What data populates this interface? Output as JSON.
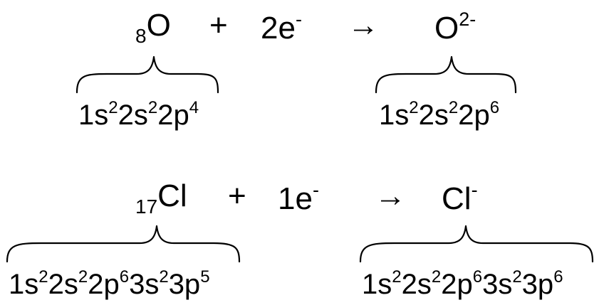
{
  "reactions": [
    {
      "reactant": {
        "subscript": "8",
        "symbol": "O"
      },
      "plus": "+",
      "electrons": {
        "count": "2e",
        "sign": "-"
      },
      "arrow": "→",
      "product": {
        "symbol": "O",
        "charge": "2-"
      },
      "reactant_config": [
        {
          "base": "1s",
          "exp": "2"
        },
        {
          "base": "2s",
          "exp": "2"
        },
        {
          "base": "2p",
          "exp": "4"
        }
      ],
      "product_config": [
        {
          "base": "1s",
          "exp": "2"
        },
        {
          "base": "2s",
          "exp": "2"
        },
        {
          "base": "2p",
          "exp": "6"
        }
      ]
    },
    {
      "reactant": {
        "subscript": "17",
        "symbol": "Cl"
      },
      "plus": "+",
      "electrons": {
        "count": "1e",
        "sign": "-"
      },
      "arrow": "→",
      "product": {
        "symbol": "Cl",
        "charge": "-"
      },
      "reactant_config": [
        {
          "base": "1s",
          "exp": "2"
        },
        {
          "base": "2s",
          "exp": "2"
        },
        {
          "base": "2p",
          "exp": "6"
        },
        {
          "base": "3s",
          "exp": "2"
        },
        {
          "base": "3p",
          "exp": "5"
        }
      ],
      "product_config": [
        {
          "base": "1s",
          "exp": "2"
        },
        {
          "base": "2s",
          "exp": "2"
        },
        {
          "base": "2p",
          "exp": "6"
        },
        {
          "base": "3s",
          "exp": "2"
        },
        {
          "base": "3p",
          "exp": "6"
        }
      ]
    }
  ]
}
